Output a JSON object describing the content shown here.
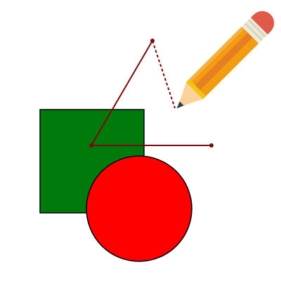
{
  "canvas": {
    "background": "#ffffff"
  },
  "shapes": {
    "square": {
      "fill": "#007a0a",
      "stroke": "#000000"
    },
    "circle": {
      "fill": "#ff0000",
      "stroke": "#000000"
    }
  },
  "path": {
    "color": "#7a0a0a",
    "vertex_count": 3,
    "pending_segment_style": "dashed"
  },
  "tool": {
    "icon": "pencil-icon",
    "colors": {
      "body": "#f39c12",
      "stripe": "#e67e22",
      "band": "#f1c40f",
      "ferrule": "#ecebd8",
      "eraser": "#e05a4a",
      "wood": "#fbd19a",
      "lead": "#3b3b3b"
    }
  }
}
